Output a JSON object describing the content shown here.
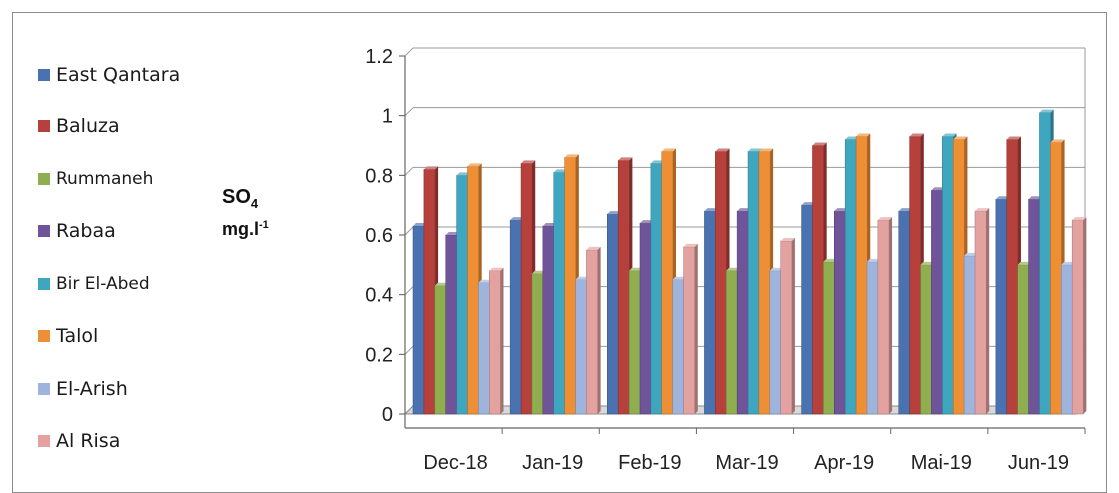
{
  "chart_data": {
    "type": "bar",
    "categories": [
      "Dec-18",
      "Jan-19",
      "Feb-19",
      "Mar-19",
      "Apr-19",
      "Mai-19",
      "Jun-19"
    ],
    "series": [
      {
        "name": "East Qantara",
        "color": "#4a72b0",
        "values": [
          0.63,
          0.65,
          0.67,
          0.68,
          0.7,
          0.68,
          0.72
        ]
      },
      {
        "name": "Baluza",
        "color": "#b5403c",
        "values": [
          0.82,
          0.84,
          0.85,
          0.88,
          0.9,
          0.93,
          0.92
        ]
      },
      {
        "name": "Rummaneh",
        "color": "#8fae4f",
        "values": [
          0.43,
          0.47,
          0.48,
          0.48,
          0.51,
          0.5,
          0.5
        ]
      },
      {
        "name": "Rabaa",
        "color": "#6f549a",
        "values": [
          0.6,
          0.63,
          0.64,
          0.68,
          0.68,
          0.75,
          0.72
        ]
      },
      {
        "name": "Bir El-Abed",
        "color": "#3fa6bf",
        "values": [
          0.8,
          0.81,
          0.84,
          0.88,
          0.92,
          0.93,
          1.01
        ]
      },
      {
        "name": "Talol",
        "color": "#ef8f35",
        "values": [
          0.83,
          0.86,
          0.88,
          0.88,
          0.93,
          0.92,
          0.91
        ]
      },
      {
        "name": "El-Arish",
        "color": "#9fb4dd",
        "values": [
          0.44,
          0.45,
          0.45,
          0.48,
          0.51,
          0.53,
          0.5
        ]
      },
      {
        "name": "Al Risa",
        "color": "#e3a2a0",
        "values": [
          0.48,
          0.55,
          0.56,
          0.58,
          0.65,
          0.68,
          0.65
        ]
      }
    ],
    "ylim": [
      0,
      1.2
    ],
    "yticks": [
      "0",
      "0.2",
      "0.4",
      "0.6",
      "0.8",
      "1",
      "1.2"
    ],
    "ylabel_main": "SO",
    "ylabel_sub": "4",
    "ylabel_unit": "mg.l",
    "ylabel_sup": "-1",
    "grid": true,
    "legend_position": "left"
  }
}
